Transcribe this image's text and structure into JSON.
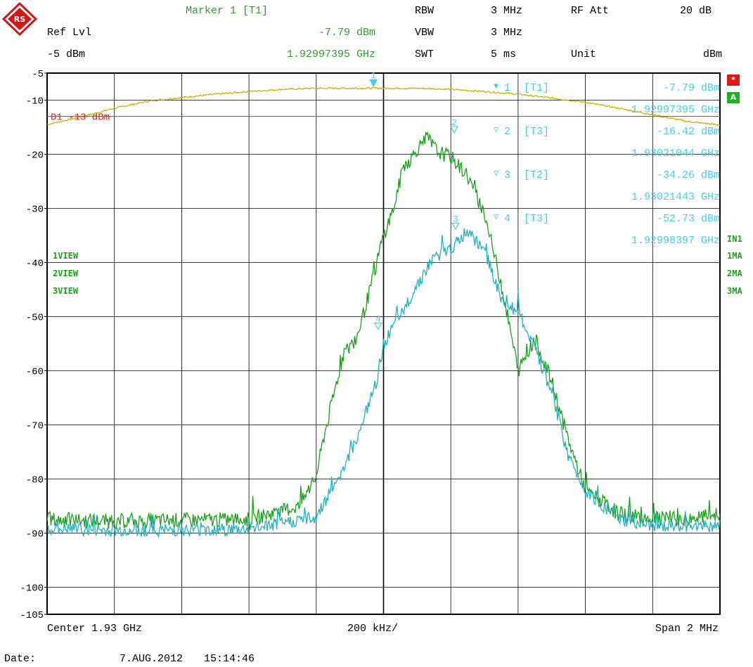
{
  "header": {
    "marker_title": "Marker 1 [T1]",
    "ref_lvl_label": "Ref Lvl",
    "marker_level": "-7.79 dBm",
    "ref_lvl_value": "-5 dBm",
    "marker_freq": "1.92997395 GHz",
    "rbw_label": "RBW",
    "rbw_value": "3 MHz",
    "vbw_label": "VBW",
    "vbw_value": "3 MHz",
    "swt_label": "SWT",
    "swt_value": "5 ms",
    "rfatt_label": "RF Att",
    "rfatt_value": "20 dB",
    "unit_label": "Unit",
    "unit_value": "dBm"
  },
  "footer": {
    "center": "Center 1.93 GHz",
    "div": "200 kHz/",
    "span": "Span 2 MHz",
    "date_label": "Date:",
    "date_value": "7.AUG.2012",
    "time_value": "15:14:46"
  },
  "side_right": {
    "star": "*",
    "a": "A",
    "in1": "IN1",
    "ma1": "1MA",
    "ma2": "2MA",
    "ma3": "3MA"
  },
  "trace_labels": [
    "1VIEW",
    "2VIEW",
    "3VIEW"
  ],
  "markers_table": [
    {
      "id": "1",
      "trace": "[T1]",
      "level": "-7.79 dBm",
      "freq": "1.92997395 GHz"
    },
    {
      "id": "2",
      "trace": "[T3]",
      "level": "-16.42 dBm",
      "freq": "1.93021044 GHz"
    },
    {
      "id": "3",
      "trace": "[T2]",
      "level": "-34.26 dBm",
      "freq": "1.93021443 GHz"
    },
    {
      "id": "4",
      "trace": "[T3]",
      "level": "-52.73 dBm",
      "freq": "1.92998397 GHz"
    }
  ],
  "colors": {
    "trace1": "#c8b400",
    "trace2": "#1aa01a",
    "trace3": "#20b0c0",
    "display_line": "#e02020",
    "marker": "#40d0e8",
    "grid": "#000000"
  },
  "chart_data": {
    "type": "line",
    "title": "",
    "xlabel": "",
    "ylabel": "",
    "x_unit": "MHz offset from center",
    "xlim": [
      -1.0,
      1.0
    ],
    "ylim": [
      -105,
      -5
    ],
    "y_ticks": [
      -5,
      -10,
      -20,
      -30,
      -40,
      -50,
      -60,
      -70,
      -80,
      -90,
      -100,
      -105
    ],
    "y_tick_labels": [
      "-5",
      "-10",
      "-20",
      "-30",
      "-40",
      "-50",
      "-60",
      "-70",
      "-80",
      "-90",
      "-100",
      "-105"
    ],
    "display_line": {
      "label": "D1 -13 dBm",
      "value": -13
    },
    "series": [
      {
        "key": "t1",
        "x": [
          -1.0,
          -0.9,
          -0.8,
          -0.7,
          -0.6,
          -0.5,
          -0.4,
          -0.3,
          -0.2,
          -0.1,
          -0.03,
          0.0,
          0.1,
          0.2,
          0.3,
          0.4,
          0.5,
          0.6,
          0.7,
          0.8,
          0.9,
          1.0
        ],
        "values": [
          -14.5,
          -13.1,
          -11.5,
          -10.2,
          -9.5,
          -8.9,
          -8.4,
          -8.0,
          -7.8,
          -7.8,
          -7.79,
          -7.8,
          -7.8,
          -8.0,
          -8.4,
          -8.9,
          -9.6,
          -10.4,
          -11.5,
          -12.7,
          -13.9,
          -14.6
        ]
      },
      {
        "key": "t2",
        "x": [
          -1.0,
          -0.8,
          -0.6,
          -0.4,
          -0.25,
          -0.2,
          -0.18,
          -0.15,
          -0.12,
          -0.08,
          -0.04,
          0.0,
          0.03,
          0.06,
          0.08,
          0.1,
          0.13,
          0.16,
          0.2,
          0.25,
          0.3,
          0.35,
          0.4,
          0.45,
          0.5,
          0.55,
          0.6,
          0.7,
          0.8,
          0.9,
          1.0
        ],
        "values": [
          -87.5,
          -87.8,
          -87.6,
          -87.5,
          -85.0,
          -79.5,
          -73.0,
          -65.0,
          -57.0,
          -54.0,
          -45.0,
          -35.0,
          -30.0,
          -22.0,
          -21.0,
          -19.0,
          -17.0,
          -19.5,
          -20.5,
          -24.0,
          -31.0,
          -44.0,
          -60.0,
          -54.0,
          -62.0,
          -73.0,
          -82.0,
          -86.5,
          -87.3,
          -87.5,
          -86.5
        ]
      },
      {
        "key": "t3",
        "x": [
          -1.0,
          -0.8,
          -0.6,
          -0.4,
          -0.2,
          -0.12,
          -0.08,
          -0.02,
          0.0,
          0.05,
          0.1,
          0.15,
          0.2,
          0.25,
          0.3,
          0.32,
          0.35,
          0.4,
          0.45,
          0.5,
          0.55,
          0.6,
          0.7,
          0.8,
          0.9,
          1.0
        ],
        "values": [
          -89.2,
          -89.5,
          -89.4,
          -89.3,
          -87.0,
          -78.0,
          -72.5,
          -62.0,
          -55.0,
          -50.0,
          -44.0,
          -39.0,
          -37.5,
          -34.3,
          -38.0,
          -41.0,
          -47.0,
          -49.0,
          -56.0,
          -64.0,
          -76.0,
          -82.0,
          -87.5,
          -88.8,
          -89.0,
          -88.5
        ]
      }
    ],
    "markers": [
      {
        "label": "1",
        "x": -0.03,
        "y": -7.79
      },
      {
        "label": "2",
        "x": 0.21,
        "y": -16.42
      },
      {
        "label": "3",
        "x": 0.214,
        "y": -34.26
      },
      {
        "label": "4",
        "x": -0.016,
        "y": -52.73
      }
    ]
  }
}
